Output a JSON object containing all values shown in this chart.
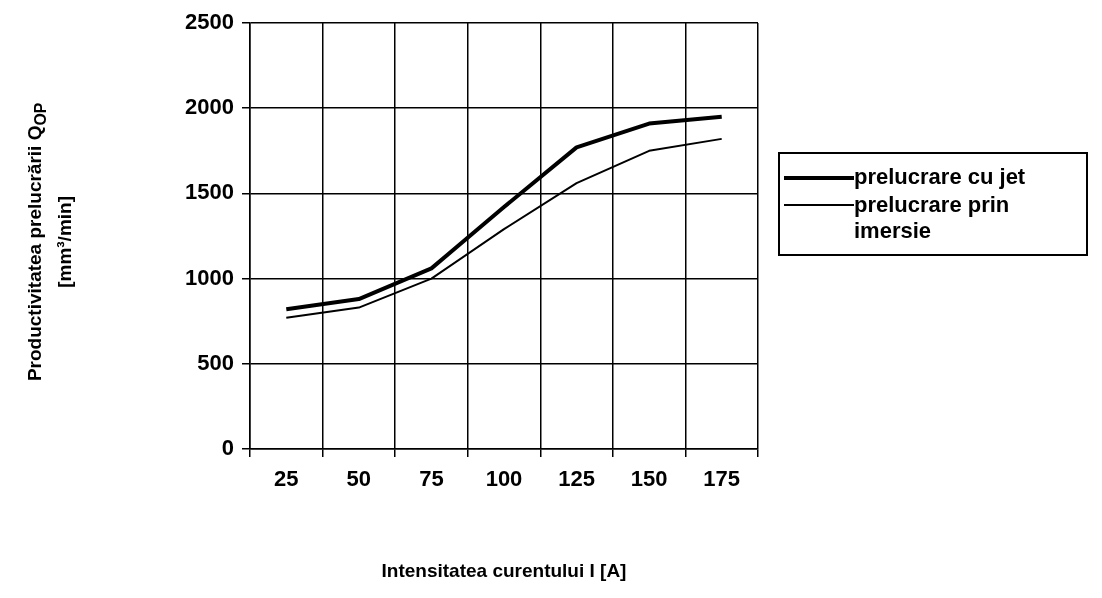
{
  "chart_data": {
    "type": "line",
    "xlabel": "Intensitatea curentului I [A]",
    "ylabel": "Productivitatea prelucrării Q$_{OP}$ [mm³/min]",
    "categories": [
      "25",
      "50",
      "75",
      "100",
      "125",
      "150",
      "175"
    ],
    "series": [
      {
        "name": "prelucrare cu jet",
        "color": "#000000",
        "values": [
          820,
          880,
          1060,
          1420,
          1770,
          1910,
          1950
        ]
      },
      {
        "name": "prelucrare prin imersie",
        "color": "#000000",
        "values": [
          770,
          830,
          1000,
          1290,
          1560,
          1750,
          1820
        ]
      }
    ],
    "ylim": [
      0,
      2500
    ],
    "yticks": [
      0,
      500,
      1000,
      1500,
      2000,
      2500
    ],
    "grid": true,
    "legend": "right",
    "marker": "none",
    "line_style": "solid"
  }
}
